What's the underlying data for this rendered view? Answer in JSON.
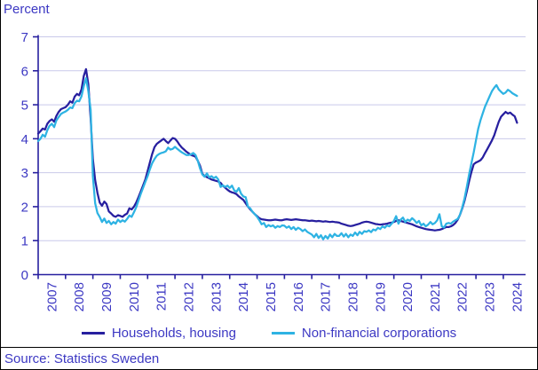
{
  "header": {
    "y_axis_title": "Percent"
  },
  "source": {
    "text": "Source: Statistics Sweden"
  },
  "legend": [
    {
      "label": "Households, housing",
      "color": "#271f9f"
    },
    {
      "label": "Non-financial corporations",
      "color": "#2eb3e3"
    }
  ],
  "colors": {
    "axis": "#271f9f",
    "grid": "#c9c9ea",
    "label_text": "#3c38c3",
    "border": "#000000",
    "background": "#ffffff"
  },
  "chart_data": {
    "type": "line",
    "title": "",
    "xlabel": "",
    "ylabel": "Percent",
    "ylim": [
      0,
      7
    ],
    "yticks": [
      0,
      1,
      2,
      3,
      4,
      5,
      6,
      7
    ],
    "grid": true,
    "legend_position": "bottom",
    "x_tick_years": [
      2007,
      2008,
      2009,
      2010,
      2011,
      2012,
      2013,
      2014,
      2015,
      2016,
      2017,
      2018,
      2019,
      2020,
      2021,
      2022,
      2023,
      2024
    ],
    "x_monthly_from": "2007-01",
    "x_monthly_to": "2024-07",
    "series": [
      {
        "name": "Households, housing",
        "color": "#271f9f",
        "values": [
          4.15,
          4.22,
          4.3,
          4.27,
          4.44,
          4.52,
          4.57,
          4.5,
          4.67,
          4.79,
          4.87,
          4.9,
          4.93,
          5.0,
          5.1,
          5.06,
          5.24,
          5.32,
          5.28,
          5.45,
          5.85,
          6.05,
          5.6,
          4.6,
          3.4,
          2.78,
          2.4,
          2.12,
          2.03,
          2.15,
          2.08,
          1.86,
          1.8,
          1.73,
          1.7,
          1.75,
          1.73,
          1.7,
          1.76,
          1.8,
          1.95,
          1.92,
          2.0,
          2.12,
          2.28,
          2.45,
          2.62,
          2.8,
          3.05,
          3.3,
          3.55,
          3.75,
          3.85,
          3.9,
          3.95,
          4.0,
          3.93,
          3.87,
          3.95,
          4.02,
          4.0,
          3.92,
          3.82,
          3.74,
          3.68,
          3.62,
          3.57,
          3.52,
          3.5,
          3.47,
          3.35,
          3.2,
          2.97,
          2.9,
          2.87,
          2.84,
          2.8,
          2.78,
          2.76,
          2.74,
          2.7,
          2.62,
          2.56,
          2.5,
          2.45,
          2.42,
          2.4,
          2.37,
          2.3,
          2.25,
          2.2,
          2.1,
          2.0,
          1.92,
          1.85,
          1.78,
          1.72,
          1.66,
          1.63,
          1.62,
          1.61,
          1.6,
          1.6,
          1.61,
          1.62,
          1.61,
          1.6,
          1.6,
          1.62,
          1.63,
          1.62,
          1.61,
          1.62,
          1.63,
          1.62,
          1.61,
          1.6,
          1.6,
          1.59,
          1.58,
          1.59,
          1.58,
          1.57,
          1.58,
          1.57,
          1.56,
          1.57,
          1.56,
          1.55,
          1.56,
          1.55,
          1.54,
          1.53,
          1.5,
          1.48,
          1.46,
          1.44,
          1.43,
          1.44,
          1.46,
          1.48,
          1.5,
          1.53,
          1.55,
          1.56,
          1.55,
          1.53,
          1.51,
          1.49,
          1.48,
          1.47,
          1.48,
          1.49,
          1.5,
          1.52,
          1.53,
          1.55,
          1.58,
          1.6,
          1.58,
          1.56,
          1.54,
          1.52,
          1.5,
          1.48,
          1.45,
          1.42,
          1.4,
          1.38,
          1.36,
          1.34,
          1.33,
          1.32,
          1.31,
          1.3,
          1.31,
          1.32,
          1.34,
          1.37,
          1.4,
          1.4,
          1.42,
          1.46,
          1.52,
          1.62,
          1.76,
          1.95,
          2.18,
          2.45,
          2.75,
          3.02,
          3.25,
          3.3,
          3.33,
          3.37,
          3.45,
          3.58,
          3.7,
          3.82,
          3.95,
          4.1,
          4.3,
          4.5,
          4.65,
          4.72,
          4.79,
          4.74,
          4.77,
          4.71,
          4.66,
          4.47
        ]
      },
      {
        "name": "Non-financial corporations",
        "color": "#2eb3e3",
        "values": [
          3.93,
          4.0,
          4.12,
          4.06,
          4.25,
          4.38,
          4.44,
          4.34,
          4.54,
          4.64,
          4.73,
          4.77,
          4.8,
          4.85,
          4.92,
          4.9,
          5.05,
          5.12,
          5.1,
          5.25,
          5.55,
          5.78,
          5.4,
          4.85,
          2.9,
          2.1,
          1.81,
          1.7,
          1.55,
          1.65,
          1.52,
          1.58,
          1.48,
          1.55,
          1.5,
          1.62,
          1.55,
          1.6,
          1.56,
          1.64,
          1.74,
          1.7,
          1.84,
          1.98,
          2.18,
          2.38,
          2.55,
          2.73,
          2.9,
          3.1,
          3.28,
          3.4,
          3.5,
          3.55,
          3.58,
          3.6,
          3.63,
          3.74,
          3.68,
          3.7,
          3.76,
          3.7,
          3.65,
          3.6,
          3.56,
          3.52,
          3.52,
          3.54,
          3.58,
          3.52,
          3.35,
          3.12,
          2.95,
          2.88,
          2.98,
          2.86,
          2.9,
          2.84,
          2.88,
          2.8,
          2.58,
          2.63,
          2.58,
          2.62,
          2.55,
          2.62,
          2.48,
          2.44,
          2.55,
          2.38,
          2.3,
          2.28,
          2.0,
          1.95,
          1.85,
          1.78,
          1.7,
          1.6,
          1.48,
          1.52,
          1.4,
          1.46,
          1.42,
          1.45,
          1.38,
          1.43,
          1.4,
          1.45,
          1.44,
          1.38,
          1.42,
          1.34,
          1.4,
          1.32,
          1.38,
          1.34,
          1.28,
          1.33,
          1.26,
          1.22,
          1.18,
          1.1,
          1.2,
          1.08,
          1.16,
          1.04,
          1.14,
          1.06,
          1.18,
          1.1,
          1.2,
          1.14,
          1.14,
          1.22,
          1.12,
          1.2,
          1.1,
          1.18,
          1.14,
          1.24,
          1.16,
          1.26,
          1.2,
          1.28,
          1.26,
          1.3,
          1.25,
          1.33,
          1.3,
          1.38,
          1.34,
          1.42,
          1.38,
          1.45,
          1.42,
          1.5,
          1.58,
          1.72,
          1.5,
          1.62,
          1.68,
          1.55,
          1.62,
          1.58,
          1.66,
          1.6,
          1.52,
          1.58,
          1.45,
          1.5,
          1.42,
          1.47,
          1.55,
          1.48,
          1.52,
          1.6,
          1.78,
          1.42,
          1.39,
          1.5,
          1.52,
          1.5,
          1.56,
          1.6,
          1.64,
          1.76,
          1.98,
          2.25,
          2.58,
          2.95,
          3.28,
          3.6,
          3.95,
          4.3,
          4.55,
          4.75,
          4.95,
          5.1,
          5.25,
          5.4,
          5.5,
          5.58,
          5.45,
          5.38,
          5.32,
          5.36,
          5.44,
          5.4,
          5.34,
          5.3,
          5.26
        ]
      }
    ]
  }
}
